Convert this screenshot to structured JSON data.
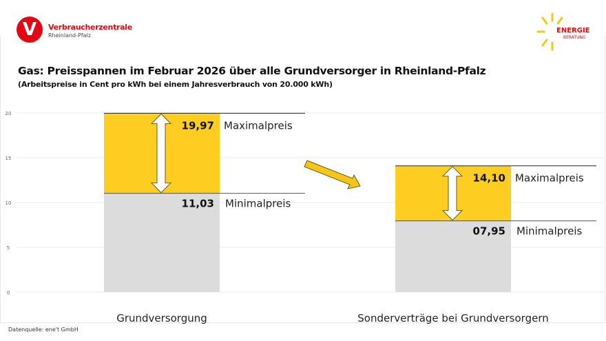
{
  "header": {
    "org_name": "Verbraucherzentrale",
    "org_region": "Rheinland-Pfalz",
    "partner_logo_line1": "ENERGIE",
    "partner_logo_line2": "BERATUNG"
  },
  "title": "Gas: Preisspannen im Februar 2026 über alle Grundversorger in Rheinland-Pfalz",
  "subtitle": "(Arbeitspreise in Cent pro kWh bei einem Jahresverbrauch von 20.000 kWh)",
  "source": "Datenquelle: ene't GmbH",
  "colors": {
    "brand_red": "#e30613",
    "range": "#fdcd22",
    "base": "#dcdcdc",
    "arrow": "#f5c518"
  },
  "chart_data": {
    "type": "bar",
    "stacked": "floating-range",
    "categories": [
      "Grundversorgung",
      "Sonderverträge bei Grundversorgern"
    ],
    "min_values": [
      11.03,
      7.95
    ],
    "max_values": [
      19.97,
      14.1
    ],
    "min_labels": [
      "11,03",
      "07,95"
    ],
    "max_labels": [
      "19,97",
      "14,10"
    ],
    "max_text": "Maximalpreis",
    "min_text": "Minimalpreis",
    "ylim": [
      0,
      20
    ],
    "yticks": [
      "0",
      "5",
      "10",
      "15",
      "20"
    ],
    "grid": true
  }
}
